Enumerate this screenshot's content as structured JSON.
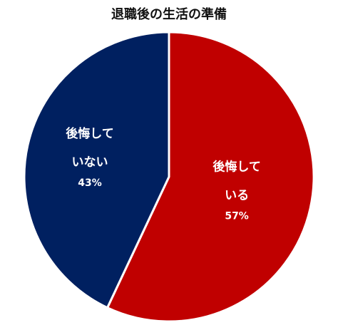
{
  "chart_data": {
    "type": "pie",
    "title": "退職後の生活の準備",
    "slices": [
      {
        "label_lines": [
          "後悔して",
          "いる"
        ],
        "value": 57,
        "pct_label": "57%",
        "color": "#c00000"
      },
      {
        "label_lines": [
          "後悔して",
          "いない"
        ],
        "value": 43,
        "pct_label": "43%",
        "color": "#002060"
      }
    ],
    "start": "12 o'clock",
    "direction": "clockwise",
    "slice_border_color": "#ffffff",
    "legend": "none"
  }
}
